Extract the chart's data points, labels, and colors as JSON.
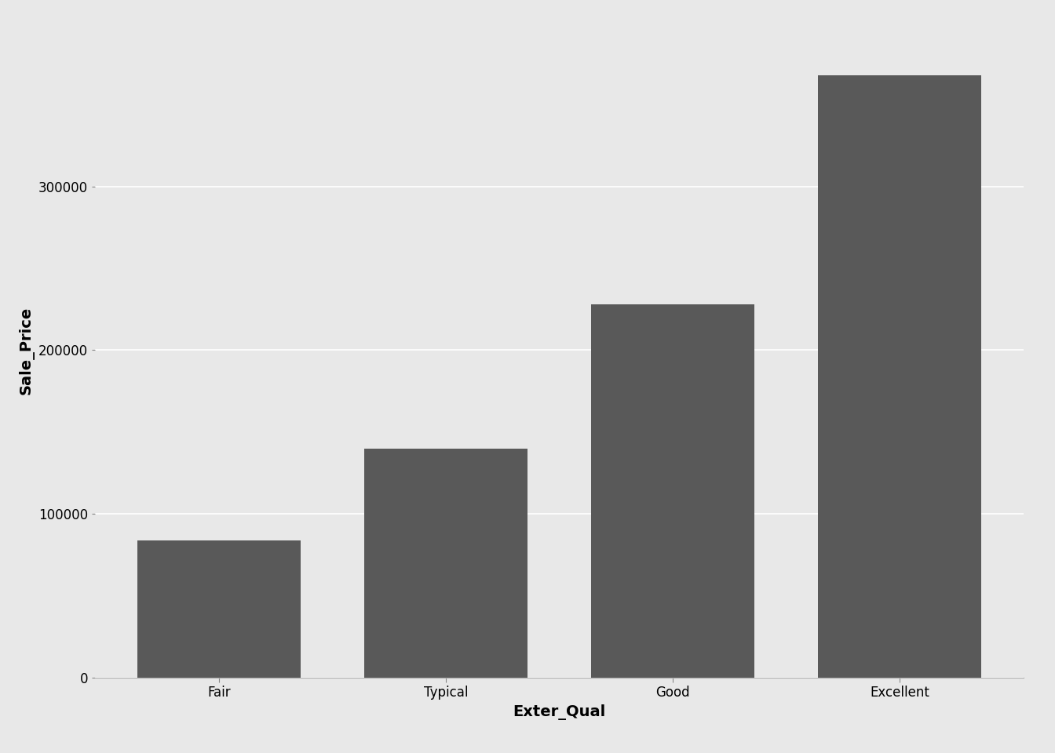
{
  "categories": [
    "Fair",
    "Typical",
    "Good",
    "Excellent"
  ],
  "values": [
    84000,
    140000,
    228000,
    368000
  ],
  "bar_color": "#595959",
  "background_color": "#e8e8e8",
  "panel_color": "#e8e8e8",
  "xlabel": "Exter_Qual",
  "ylabel": "Sale_Price",
  "ylim": [
    0,
    400000
  ],
  "yticks": [
    0,
    100000,
    200000,
    300000
  ],
  "grid_color": "#ffffff",
  "axis_label_fontsize": 14,
  "tick_fontsize": 12,
  "bar_width": 0.72
}
